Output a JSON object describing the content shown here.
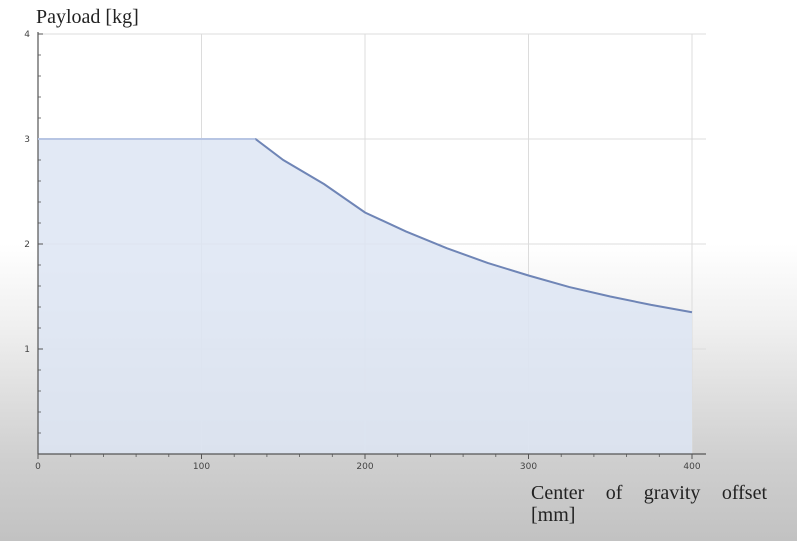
{
  "chart_data": {
    "type": "area",
    "xlabel": "Center of gravity offset [mm]",
    "ylabel": "Payload [kg]",
    "xlim": [
      0,
      400
    ],
    "ylim": [
      0,
      4
    ],
    "xticks": [
      "0",
      "100",
      "200",
      "300",
      "400"
    ],
    "yticks": [
      "1",
      "2",
      "3",
      "4"
    ],
    "grid": true,
    "series": [
      {
        "x": [
          0,
          133,
          150,
          175,
          200,
          225,
          250,
          275,
          300,
          325,
          350,
          375,
          400
        ],
        "y": [
          3,
          3,
          2.8,
          2.57,
          2.3,
          2.12,
          1.96,
          1.82,
          1.7,
          1.59,
          1.5,
          1.42,
          1.35
        ]
      }
    ],
    "colors": {
      "line": "#6f85b6",
      "fill": "#dde5f3",
      "grid": "#dcdcdc",
      "axis": "#555555"
    }
  }
}
